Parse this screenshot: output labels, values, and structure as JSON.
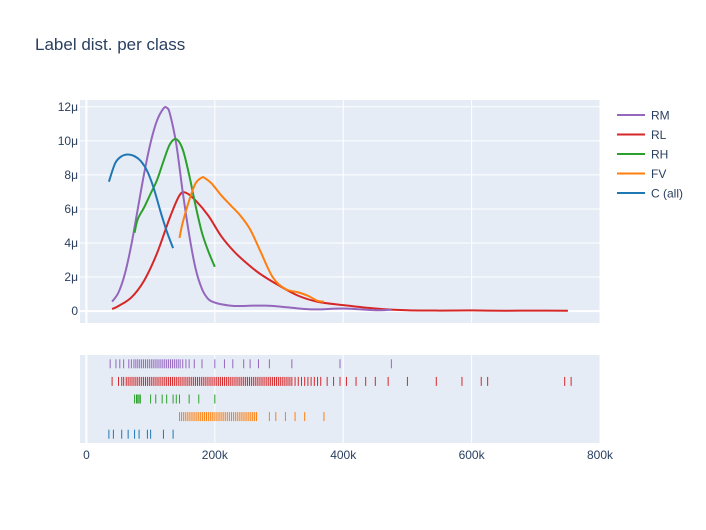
{
  "chart_data": {
    "type": "line",
    "title": "Label dist. per class",
    "x_axis": {
      "range": [
        -10000,
        800000
      ],
      "ticks": [
        0,
        200000,
        400000,
        600000,
        800000
      ],
      "tick_labels": [
        "0",
        "200k",
        "400k",
        "600k",
        "800k"
      ]
    },
    "y_axis": {
      "range": [
        -0.7,
        12.4
      ],
      "unit": "μ",
      "ticks": [
        0,
        2,
        4,
        6,
        8,
        10,
        12
      ],
      "tick_labels": [
        "0",
        "2μ",
        "4μ",
        "6μ",
        "8μ",
        "10μ",
        "12μ"
      ]
    },
    "grid": true,
    "legend_position": "top-right",
    "series": [
      {
        "name": "RM",
        "color": "#9467bd",
        "points": [
          [
            40000,
            0.55
          ],
          [
            50000,
            1.1
          ],
          [
            60000,
            2.2
          ],
          [
            70000,
            3.9
          ],
          [
            80000,
            6.0
          ],
          [
            90000,
            8.1
          ],
          [
            100000,
            9.9
          ],
          [
            110000,
            11.2
          ],
          [
            120000,
            11.9
          ],
          [
            125000,
            11.95
          ],
          [
            130000,
            11.6
          ],
          [
            140000,
            9.8
          ],
          [
            150000,
            7.0
          ],
          [
            160000,
            4.5
          ],
          [
            170000,
            2.5
          ],
          [
            180000,
            1.3
          ],
          [
            190000,
            0.7
          ],
          [
            200000,
            0.5
          ],
          [
            210000,
            0.4
          ],
          [
            230000,
            0.3
          ],
          [
            260000,
            0.32
          ],
          [
            280000,
            0.32
          ],
          [
            300000,
            0.27
          ],
          [
            350000,
            0.1
          ],
          [
            400000,
            0.15
          ],
          [
            450000,
            0.05
          ],
          [
            475000,
            0.08
          ]
        ]
      },
      {
        "name": "RL",
        "color": "#d62728",
        "points": [
          [
            40000,
            0.12
          ],
          [
            50000,
            0.3
          ],
          [
            70000,
            0.8
          ],
          [
            90000,
            1.8
          ],
          [
            110000,
            3.4
          ],
          [
            130000,
            5.5
          ],
          [
            145000,
            6.8
          ],
          [
            155000,
            6.95
          ],
          [
            170000,
            6.5
          ],
          [
            190000,
            5.6
          ],
          [
            210000,
            4.4
          ],
          [
            230000,
            3.5
          ],
          [
            250000,
            2.8
          ],
          [
            270000,
            2.2
          ],
          [
            300000,
            1.5
          ],
          [
            330000,
            0.9
          ],
          [
            360000,
            0.55
          ],
          [
            400000,
            0.35
          ],
          [
            450000,
            0.15
          ],
          [
            500000,
            0.05
          ],
          [
            550000,
            0.03
          ],
          [
            600000,
            0.04
          ],
          [
            650000,
            0.02
          ],
          [
            700000,
            0.03
          ],
          [
            750000,
            0.02
          ]
        ]
      },
      {
        "name": "RH",
        "color": "#2ca02c",
        "points": [
          [
            75000,
            4.6
          ],
          [
            80000,
            5.4
          ],
          [
            90000,
            6.1
          ],
          [
            100000,
            6.9
          ],
          [
            110000,
            7.7
          ],
          [
            120000,
            8.8
          ],
          [
            130000,
            9.8
          ],
          [
            140000,
            10.1
          ],
          [
            150000,
            9.5
          ],
          [
            160000,
            8.0
          ],
          [
            170000,
            6.2
          ],
          [
            180000,
            4.6
          ],
          [
            190000,
            3.5
          ],
          [
            200000,
            2.6
          ]
        ]
      },
      {
        "name": "FV",
        "color": "#ff7f0e",
        "points": [
          [
            145000,
            4.3
          ],
          [
            150000,
            5.2
          ],
          [
            160000,
            6.5
          ],
          [
            170000,
            7.5
          ],
          [
            180000,
            7.85
          ],
          [
            185000,
            7.8
          ],
          [
            195000,
            7.5
          ],
          [
            210000,
            6.8
          ],
          [
            225000,
            6.2
          ],
          [
            240000,
            5.6
          ],
          [
            255000,
            4.8
          ],
          [
            270000,
            3.6
          ],
          [
            290000,
            2.0
          ],
          [
            310000,
            1.3
          ],
          [
            330000,
            1.1
          ],
          [
            345000,
            0.9
          ],
          [
            360000,
            0.6
          ],
          [
            370000,
            0.55
          ]
        ]
      },
      {
        "name": "C (all)",
        "color": "#1f77b4",
        "points": [
          [
            35000,
            7.6
          ],
          [
            45000,
            8.7
          ],
          [
            55000,
            9.1
          ],
          [
            65000,
            9.2
          ],
          [
            75000,
            9.1
          ],
          [
            85000,
            8.8
          ],
          [
            95000,
            8.2
          ],
          [
            105000,
            7.2
          ],
          [
            115000,
            5.9
          ],
          [
            125000,
            4.7
          ],
          [
            135000,
            3.7
          ]
        ]
      }
    ],
    "rugs": [
      {
        "name": "RM",
        "color": "#9467bd",
        "x": [
          37000,
          46000,
          52000,
          58000,
          66000,
          70000,
          74000,
          77000,
          80000,
          83000,
          86000,
          89000,
          92000,
          95000,
          98000,
          101000,
          104000,
          107000,
          110000,
          113000,
          116000,
          119000,
          122000,
          125000,
          128000,
          131000,
          134000,
          137000,
          140000,
          143000,
          146000,
          150000,
          155000,
          160000,
          168000,
          180000,
          200000,
          215000,
          228000,
          245000,
          255000,
          268000,
          285000,
          320000,
          395000,
          475000
        ]
      },
      {
        "name": "RL",
        "color": "#d62728",
        "x": [
          40000,
          50000,
          55000,
          58000,
          62000,
          65000,
          68000,
          71000,
          74000,
          77000,
          80000,
          83000,
          86000,
          89000,
          92000,
          95000,
          98000,
          101000,
          104000,
          107000,
          110000,
          113000,
          116000,
          119000,
          122000,
          125000,
          128000,
          131000,
          134000,
          137000,
          140000,
          143000,
          146000,
          149000,
          152000,
          155000,
          158000,
          161000,
          164000,
          167000,
          170000,
          173000,
          176000,
          179000,
          182000,
          185000,
          188000,
          191000,
          194000,
          197000,
          200000,
          203000,
          206000,
          209000,
          212000,
          215000,
          218000,
          221000,
          224000,
          227000,
          230000,
          233000,
          236000,
          239000,
          242000,
          245000,
          248000,
          251000,
          254000,
          257000,
          260000,
          263000,
          266000,
          269000,
          272000,
          275000,
          278000,
          281000,
          284000,
          287000,
          290000,
          293000,
          296000,
          299000,
          302000,
          305000,
          308000,
          311000,
          314000,
          317000,
          320000,
          325000,
          330000,
          335000,
          340000,
          345000,
          350000,
          355000,
          360000,
          365000,
          375000,
          385000,
          395000,
          405000,
          420000,
          435000,
          450000,
          470000,
          500000,
          545000,
          585000,
          615000,
          625000,
          745000,
          755000
        ]
      },
      {
        "name": "RH",
        "color": "#2ca02c",
        "x": [
          75000,
          78000,
          80000,
          82000,
          84000,
          100000,
          108000,
          118000,
          125000,
          135000,
          140000,
          145000,
          160000,
          175000,
          200000
        ]
      },
      {
        "name": "FV",
        "color": "#ff7f0e",
        "x": [
          145000,
          148000,
          151000,
          154000,
          157000,
          160000,
          163000,
          166000,
          169000,
          172000,
          175000,
          178000,
          181000,
          184000,
          187000,
          190000,
          193000,
          196000,
          199000,
          202000,
          205000,
          208000,
          211000,
          214000,
          217000,
          220000,
          223000,
          226000,
          229000,
          232000,
          235000,
          238000,
          241000,
          244000,
          247000,
          250000,
          253000,
          256000,
          259000,
          262000,
          265000,
          285000,
          295000,
          310000,
          325000,
          340000,
          370000
        ]
      },
      {
        "name": "C (all)",
        "color": "#1f77b4",
        "x": [
          35000,
          42000,
          55000,
          65000,
          75000,
          82000,
          95000,
          100000,
          120000,
          135000
        ]
      }
    ]
  }
}
